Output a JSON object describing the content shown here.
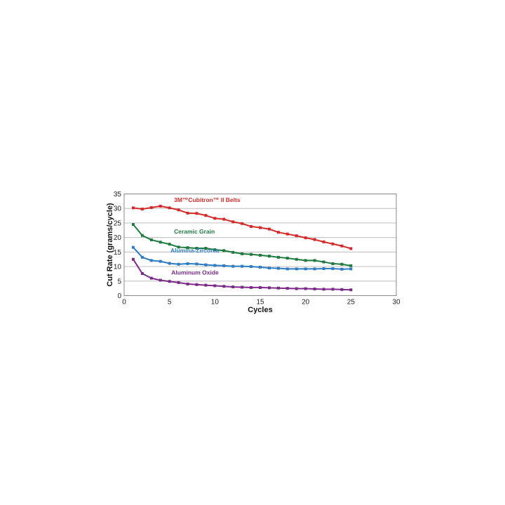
{
  "chart_data": {
    "type": "line",
    "title": "",
    "xlabel": "Cycles",
    "ylabel": "Cut Rate (grams/cycle)",
    "xlim": [
      0,
      30
    ],
    "ylim": [
      0,
      35
    ],
    "xticks": [
      0,
      5,
      10,
      15,
      20,
      25,
      30
    ],
    "yticks": [
      0,
      5,
      10,
      15,
      20,
      25,
      30,
      35
    ],
    "grid": "horizontal",
    "legend": "inline labels",
    "x": [
      1,
      2,
      3,
      4,
      5,
      6,
      7,
      8,
      9,
      10,
      11,
      12,
      13,
      14,
      15,
      16,
      17,
      18,
      19,
      20,
      21,
      22,
      23,
      24,
      25
    ],
    "series": [
      {
        "name": "3M™Cubitron™ II Belts",
        "color": "#d42a2a",
        "values": [
          30.2,
          29.8,
          30.3,
          30.8,
          30.2,
          29.5,
          28.4,
          28.3,
          27.6,
          26.6,
          26.3,
          25.4,
          24.8,
          23.8,
          23.4,
          22.9,
          21.8,
          21.2,
          20.6,
          19.9,
          19.3,
          18.5,
          17.8,
          17.1,
          16.2
        ]
      },
      {
        "name": "Ceramic Grain",
        "color": "#1e7a3e",
        "values": [
          24.5,
          20.7,
          19.2,
          18.4,
          17.7,
          16.7,
          16.5,
          16.3,
          16.3,
          15.8,
          15.5,
          14.9,
          14.4,
          14.2,
          13.9,
          13.6,
          13.2,
          12.9,
          12.5,
          12.1,
          12.1,
          11.6,
          11.0,
          10.8,
          10.3
        ]
      },
      {
        "name": "Alumina-Zirconia",
        "color": "#2e7cc4",
        "values": [
          16.6,
          13.2,
          12.1,
          11.8,
          11.1,
          10.8,
          11.0,
          10.9,
          10.6,
          10.4,
          10.3,
          10.1,
          10.1,
          10.0,
          9.8,
          9.5,
          9.4,
          9.2,
          9.2,
          9.2,
          9.2,
          9.3,
          9.3,
          9.1,
          9.2
        ]
      },
      {
        "name": "Aluminum Oxide",
        "color": "#7b2a8a",
        "values": [
          12.5,
          7.6,
          6.0,
          5.3,
          4.9,
          4.5,
          4.0,
          3.8,
          3.6,
          3.4,
          3.2,
          3.0,
          2.9,
          2.8,
          2.8,
          2.7,
          2.6,
          2.5,
          2.4,
          2.4,
          2.3,
          2.2,
          2.2,
          2.1,
          2.0
        ]
      }
    ]
  }
}
